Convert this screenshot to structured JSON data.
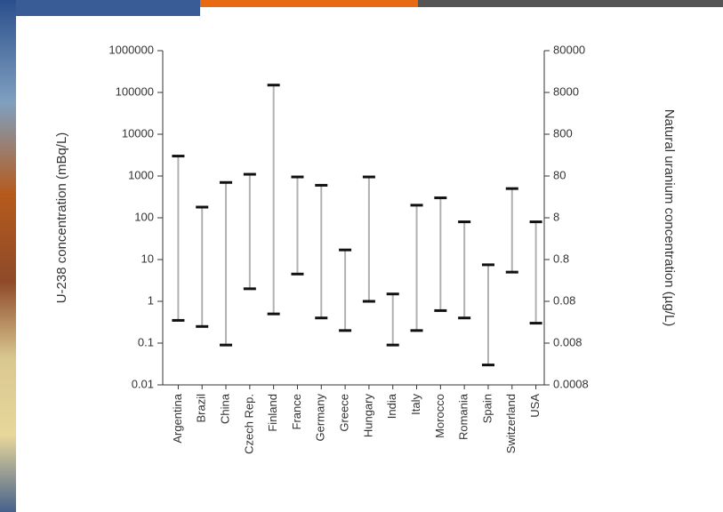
{
  "chart_data": {
    "type": "range",
    "ylabel": "U-238 concentration (mBq/L)",
    "y2label": "Natural uranium concentration (µg/L)",
    "categories": [
      "Argentina",
      "Brazil",
      "China",
      "Czech Rep.",
      "Finland",
      "France",
      "Germany",
      "Greece",
      "Hungary",
      "India",
      "Italy",
      "Morocco",
      "Romania",
      "Spain",
      "Switzerland",
      "USA"
    ],
    "low": [
      0.35,
      0.25,
      0.09,
      2,
      0.5,
      4.5,
      0.4,
      0.2,
      1,
      0.09,
      0.2,
      0.6,
      0.4,
      0.03,
      5,
      0.3
    ],
    "high": [
      3000,
      180,
      700,
      1100,
      150000,
      950,
      600,
      17,
      950,
      1.5,
      200,
      300,
      80,
      7.5,
      500,
      80
    ],
    "line_color": "#b0b0b0",
    "cap_color": "#111111",
    "log_scale": true,
    "ylim": [
      0.01,
      1000000
    ],
    "yticks": [
      0.01,
      0.1,
      1,
      10,
      100,
      1000,
      10000,
      100000,
      1000000
    ],
    "y2lim": [
      0.0008,
      80000
    ],
    "y2ticks": [
      0.0008,
      0.008,
      0.08,
      0.8,
      8,
      80,
      800,
      8000,
      80000
    ]
  }
}
